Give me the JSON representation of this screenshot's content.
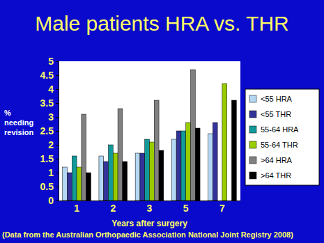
{
  "chart_data": {
    "type": "bar",
    "title": "Male patients HRA vs. THR",
    "x_label": "Years after surgery",
    "y_label": "% needing revision",
    "annotation": "(Data from the Australian Orthopaedic Association National Joint Registry 2008)",
    "categories": [
      "1",
      "2",
      "3",
      "5",
      "7"
    ],
    "series": [
      {
        "name": "<55 HRA",
        "color": "#b4d8f4",
        "values": [
          1.2,
          1.6,
          1.7,
          2.2,
          2.4
        ]
      },
      {
        "name": "<55 THR",
        "color": "#333399",
        "values": [
          1.0,
          1.4,
          1.7,
          2.5,
          2.8
        ]
      },
      {
        "name": "55-64 HRA",
        "color": "#129a9a",
        "values": [
          1.6,
          2.0,
          2.2,
          2.5,
          null
        ]
      },
      {
        "name": "55-64 THR",
        "color": "#99cc00",
        "values": [
          1.2,
          1.7,
          2.1,
          2.8,
          4.2
        ]
      },
      {
        "name": ">64 HRA",
        "color": "#808080",
        "values": [
          3.1,
          3.3,
          3.6,
          4.7,
          null
        ]
      },
      {
        "name": ">64 THR",
        "color": "#000000",
        "values": [
          1.0,
          1.4,
          1.8,
          2.6,
          3.6
        ]
      }
    ],
    "ylim": [
      0,
      5
    ],
    "yticks": [
      0,
      0.5,
      1,
      1.5,
      2,
      2.5,
      3,
      3.5,
      4,
      4.5,
      5
    ],
    "grid": false,
    "legend": "right"
  }
}
